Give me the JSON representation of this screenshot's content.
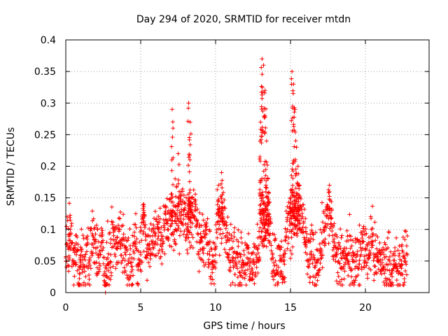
{
  "chart_data": {
    "type": "scatter",
    "title": "Day 294 of 2020, SRMTID for receiver mtdn",
    "xlabel": "GPS time / hours",
    "ylabel": "SRMTID / TECUs",
    "xlim": [
      0,
      24.25
    ],
    "ylim": [
      0,
      0.4
    ],
    "xticks": [
      0,
      5,
      10,
      15,
      20
    ],
    "xtick_labels": [
      "0",
      "5",
      "10",
      "15",
      "20"
    ],
    "yticks": [
      0,
      0.05,
      0.1,
      0.15,
      0.2,
      0.25,
      0.3,
      0.35,
      0.4
    ],
    "ytick_labels": [
      "0",
      "0.05",
      "0.1",
      "0.15",
      "0.2",
      "0.25",
      "0.3",
      "0.35",
      "0.4"
    ],
    "grid": true,
    "marker": "+",
    "color": "#ff0000",
    "series": [
      {
        "name": "SRMTID",
        "x": [
          0.0,
          0.2,
          0.3,
          0.5,
          0.7,
          0.9,
          1.0,
          1.2,
          1.4,
          1.6,
          1.8,
          2.0,
          2.2,
          2.4,
          2.6,
          2.65,
          2.8,
          3.0,
          3.2,
          3.4,
          3.6,
          3.8,
          4.0,
          4.2,
          4.4,
          4.6,
          4.8,
          5.0,
          5.2,
          5.4,
          5.6,
          5.8,
          6.0,
          6.2,
          6.4,
          6.6,
          6.8,
          7.0,
          7.1,
          7.3,
          7.5,
          7.7,
          7.9,
          8.1,
          8.2,
          8.3,
          8.4,
          8.6,
          8.8,
          9.0,
          9.2,
          9.4,
          9.6,
          9.8,
          10.0,
          10.2,
          10.4,
          10.5,
          10.7,
          10.9,
          11.1,
          11.3,
          11.5,
          11.7,
          11.9,
          12.1,
          12.3,
          12.5,
          12.7,
          12.9,
          13.0,
          13.1,
          13.2,
          13.3,
          13.4,
          13.5,
          13.6,
          13.8,
          14.0,
          14.2,
          14.4,
          14.6,
          14.8,
          15.0,
          15.1,
          15.2,
          15.3,
          15.4,
          15.5,
          15.6,
          15.8,
          16.0,
          16.2,
          16.4,
          16.6,
          16.8,
          17.0,
          17.2,
          17.4,
          17.6,
          17.8,
          18.0,
          18.2,
          18.4,
          18.6,
          18.8,
          19.0,
          19.2,
          19.4,
          19.6,
          19.8,
          20.0,
          20.2,
          20.4,
          20.6,
          20.8,
          21.0,
          21.2,
          21.4,
          21.6,
          21.8,
          22.0,
          22.2,
          22.4,
          22.6,
          22.8
        ],
        "y": [
          0.055,
          0.07,
          0.1,
          0.045,
          0.06,
          0.03,
          0.05,
          0.04,
          0.065,
          0.055,
          0.09,
          0.07,
          0.06,
          0.08,
          0.03,
          0.0,
          0.055,
          0.06,
          0.09,
          0.07,
          0.1,
          0.075,
          0.06,
          0.05,
          0.055,
          0.08,
          0.045,
          0.06,
          0.14,
          0.06,
          0.07,
          0.09,
          0.08,
          0.1,
          0.085,
          0.11,
          0.1,
          0.13,
          0.29,
          0.18,
          0.22,
          0.16,
          0.13,
          0.1,
          0.3,
          0.27,
          0.15,
          0.12,
          0.11,
          0.08,
          0.07,
          0.1,
          0.06,
          0.045,
          0.06,
          0.17,
          0.19,
          0.13,
          0.09,
          0.06,
          0.07,
          0.05,
          0.06,
          0.04,
          0.045,
          0.055,
          0.03,
          0.05,
          0.06,
          0.05,
          0.27,
          0.37,
          0.36,
          0.32,
          0.24,
          0.18,
          0.12,
          0.06,
          0.05,
          0.04,
          0.05,
          0.045,
          0.1,
          0.15,
          0.35,
          0.33,
          0.29,
          0.23,
          0.2,
          0.17,
          0.12,
          0.08,
          0.05,
          0.06,
          0.04,
          0.05,
          0.07,
          0.1,
          0.12,
          0.17,
          0.09,
          0.06,
          0.05,
          0.04,
          0.055,
          0.06,
          0.07,
          0.05,
          0.06,
          0.045,
          0.08,
          0.07,
          0.06,
          0.1,
          0.055,
          0.05,
          0.06,
          0.04,
          0.045,
          0.05,
          0.035,
          0.04,
          0.03,
          0.045,
          0.05,
          0.06
        ]
      }
    ],
    "background_density": {
      "description": "dense band of red plus markers around the main series",
      "spread": 0.03
    }
  }
}
